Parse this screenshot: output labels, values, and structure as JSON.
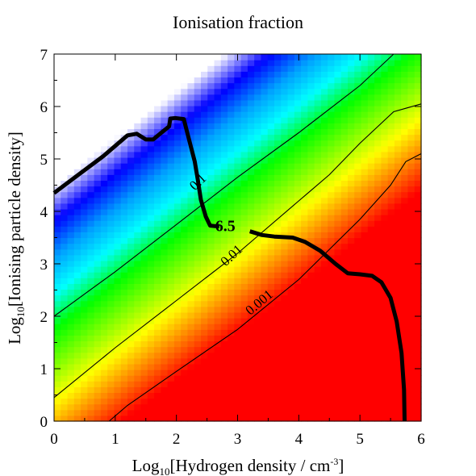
{
  "chart_data": {
    "type": "heatmap",
    "title": "Ionisation fraction",
    "xlabel_parts": {
      "prefix": "Log",
      "sub": "10",
      "mid": "[Hydrogen density / cm",
      "sup": "-3",
      "suffix": "]"
    },
    "ylabel_parts": {
      "prefix": "Log",
      "sub": "10",
      "suffix": "[Ionising particle density]"
    },
    "xlim": [
      0,
      6
    ],
    "ylim": [
      0,
      7
    ],
    "xticks": [
      "0",
      "1",
      "2",
      "3",
      "4",
      "5",
      "6"
    ],
    "yticks": [
      "0",
      "1",
      "2",
      "3",
      "4",
      "5",
      "6",
      "7"
    ],
    "colormap": [
      "#ff0000",
      "#ff7f00",
      "#ffff00",
      "#80ff00",
      "#00ff00",
      "#00ffff",
      "#00a0ff",
      "#0000ff",
      "#ffffff"
    ],
    "contours": [
      {
        "label": "0.1",
        "points": [
          [
            0,
            2.0
          ],
          [
            1,
            2.85
          ],
          [
            2,
            3.75
          ],
          [
            3,
            4.65
          ],
          [
            4,
            5.5
          ],
          [
            5,
            6.4
          ],
          [
            5.55,
            7.0
          ]
        ],
        "label_pos": [
          2.4,
          4.5
        ],
        "label_angle": -43
      },
      {
        "label": "0.01",
        "points": [
          [
            0,
            0.45
          ],
          [
            1,
            1.4
          ],
          [
            2,
            2.3
          ],
          [
            3,
            3.2
          ],
          [
            4,
            4.2
          ],
          [
            4.5,
            4.7
          ],
          [
            5,
            5.3
          ],
          [
            5.55,
            5.9
          ],
          [
            6,
            6.05
          ]
        ],
        "label_pos": [
          2.95,
          3.1
        ],
        "label_angle": -43
      },
      {
        "label": "0.001",
        "points": [
          [
            0.9,
            0.0
          ],
          [
            1.2,
            0.3
          ],
          [
            2,
            0.95
          ],
          [
            3,
            1.75
          ],
          [
            4,
            2.7
          ],
          [
            5,
            3.85
          ],
          [
            5.5,
            4.5
          ],
          [
            5.75,
            4.95
          ],
          [
            6,
            5.1
          ]
        ],
        "label_pos": [
          3.4,
          2.2
        ],
        "label_angle": -40
      }
    ],
    "track": {
      "points": [
        [
          0,
          4.35
        ],
        [
          0.4,
          4.7
        ],
        [
          0.8,
          5.05
        ],
        [
          1.2,
          5.45
        ],
        [
          1.35,
          5.48
        ],
        [
          1.5,
          5.37
        ],
        [
          1.62,
          5.37
        ],
        [
          1.7,
          5.45
        ],
        [
          1.88,
          5.62
        ],
        [
          1.9,
          5.77
        ],
        [
          1.98,
          5.78
        ],
        [
          2.12,
          5.76
        ],
        [
          2.2,
          5.4
        ],
        [
          2.3,
          4.95
        ],
        [
          2.35,
          4.6
        ],
        [
          2.4,
          4.22
        ],
        [
          2.48,
          3.9
        ],
        [
          2.55,
          3.73
        ],
        [
          2.62,
          3.72
        ],
        [
          2.7,
          3.72
        ]
      ],
      "points2": [
        [
          3.2,
          3.62
        ],
        [
          3.4,
          3.55
        ],
        [
          3.6,
          3.52
        ],
        [
          3.9,
          3.5
        ],
        [
          4.1,
          3.42
        ],
        [
          4.35,
          3.25
        ],
        [
          4.6,
          3.0
        ],
        [
          4.8,
          2.82
        ],
        [
          5.0,
          2.8
        ],
        [
          5.2,
          2.77
        ],
        [
          5.35,
          2.65
        ],
        [
          5.5,
          2.35
        ],
        [
          5.6,
          1.9
        ],
        [
          5.68,
          1.3
        ],
        [
          5.72,
          0.6
        ],
        [
          5.73,
          0.0
        ]
      ],
      "annotation": "6.5",
      "annotation_pos": [
        2.8,
        3.62
      ]
    }
  }
}
